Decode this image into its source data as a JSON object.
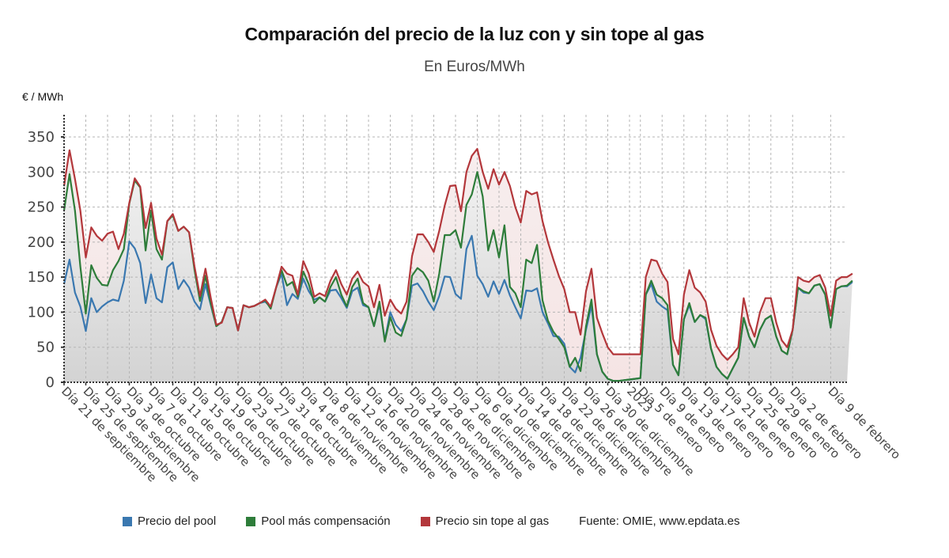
{
  "chart_data": {
    "type": "line",
    "title": "Comparación del precio de la luz con y sin tope al gas",
    "subtitle": "En Euros/MWh",
    "ylabel": "€ / MWh",
    "xlabel": "",
    "ylim": [
      0,
      380
    ],
    "yticks": [
      0,
      50,
      100,
      150,
      200,
      250,
      300,
      350
    ],
    "grid": true,
    "legend_position": "bottom",
    "source": "Fuente: OMIE, www.epdata.es",
    "xtick_labels": [
      "Día 21 de septiembre",
      "Día 25 de septiembre",
      "Día 29 de septiembre",
      "Día 3 de octubre",
      "Día 7 de octubre",
      "Día 11 de octubre",
      "Día 15 de octubre",
      "Día 19 de octubre",
      "Día 23 de octubre",
      "Día 27 de octubre",
      "Día 31 de octubre",
      "Día 4 de noviembre",
      "Día 8 de noviembre",
      "Día 12 de noviembre",
      "Día 16 de noviembre",
      "Día 20 de noviembre",
      "Día 24 de noviembre",
      "Día 28 de noviembre",
      "Día 2 de diciembre",
      "Día 6 de diciembre",
      "Día 10 de diciembre",
      "Día 14 de diciembre",
      "Día 18 de diciembre",
      "Día 22 de diciembre",
      "Día 26 de diciembre",
      "Día 30 de diciembre",
      "2023",
      "Día 5 de enero",
      "Día 9 de enero",
      "Día 13 de enero",
      "Día 17 de enero",
      "Día 21 de enero",
      "Día 25 de enero",
      "Día 29 de enero",
      "Día 2 de febrero",
      "Día 9 de febrero"
    ],
    "xtick_positions": [
      0,
      4,
      8,
      12,
      16,
      20,
      24,
      28,
      32,
      36,
      40,
      44,
      48,
      52,
      56,
      60,
      64,
      68,
      72,
      76,
      80,
      84,
      88,
      92,
      96,
      100,
      104,
      106,
      110,
      114,
      118,
      122,
      126,
      130,
      134,
      141
    ],
    "x_count": 145,
    "series": [
      {
        "name": "Precio del pool",
        "color": "#3a78b0",
        "values": [
          140,
          175,
          128,
          108,
          73,
          120,
          100,
          108,
          114,
          118,
          116,
          145,
          201,
          191,
          170,
          113,
          154,
          120,
          114,
          164,
          171,
          133,
          146,
          135,
          115,
          104,
          140,
          110,
          80,
          86,
          107,
          106,
          74,
          110,
          107,
          109,
          113,
          115,
          107,
          135,
          155,
          110,
          126,
          119,
          148,
          130,
          118,
          121,
          115,
          131,
          132,
          120,
          106,
          130,
          135,
          110,
          107,
          80,
          111,
          60,
          100,
          82,
          73,
          90,
          138,
          141,
          130,
          115,
          103,
          123,
          151,
          150,
          126,
          119,
          190,
          209,
          152,
          140,
          122,
          144,
          126,
          146,
          124,
          107,
          91,
          131,
          130,
          134,
          100,
          84,
          66,
          65,
          55,
          22,
          14,
          35,
          75,
          110,
          40,
          15,
          5,
          2,
          2,
          3,
          4,
          5,
          6,
          125,
          140,
          115,
          108,
          103,
          25,
          10,
          90,
          110,
          86,
          96,
          90,
          48,
          22,
          12,
          5,
          20,
          35,
          92,
          65,
          50,
          75,
          90,
          95,
          65,
          45,
          40,
          75,
          135,
          128,
          127,
          138,
          140,
          125,
          78,
          133,
          137,
          137,
          143
        ]
      },
      {
        "name": "Pool más compensación",
        "color": "#2e7d3a",
        "values": [
          245,
          297,
          245,
          165,
          98,
          167,
          149,
          139,
          138,
          160,
          173,
          190,
          255,
          288,
          278,
          188,
          245,
          190,
          175,
          230,
          238,
          216,
          222,
          214,
          160,
          116,
          152,
          112,
          80,
          86,
          107,
          106,
          74,
          110,
          107,
          109,
          113,
          117,
          105,
          135,
          160,
          138,
          143,
          122,
          158,
          140,
          113,
          121,
          115,
          136,
          150,
          125,
          108,
          136,
          148,
          113,
          107,
          80,
          115,
          58,
          93,
          71,
          66,
          90,
          152,
          163,
          157,
          145,
          115,
          155,
          210,
          210,
          217,
          192,
          253,
          268,
          300,
          265,
          188,
          217,
          178,
          224,
          136,
          127,
          107,
          175,
          170,
          196,
          117,
          88,
          72,
          62,
          50,
          22,
          35,
          16,
          80,
          118,
          40,
          15,
          5,
          2,
          2,
          3,
          4,
          5,
          6,
          125,
          145,
          125,
          120,
          110,
          25,
          10,
          90,
          113,
          86,
          96,
          92,
          48,
          22,
          12,
          5,
          20,
          35,
          92,
          65,
          50,
          75,
          90,
          95,
          65,
          45,
          40,
          75,
          135,
          130,
          127,
          138,
          140,
          125,
          78,
          133,
          137,
          138,
          145
        ]
      },
      {
        "name": "Precio sin tope al gas",
        "color": "#b3373b",
        "values": [
          280,
          331,
          290,
          245,
          178,
          221,
          209,
          202,
          212,
          215,
          190,
          212,
          256,
          291,
          279,
          220,
          256,
          205,
          182,
          230,
          240,
          216,
          222,
          214,
          165,
          123,
          162,
          120,
          82,
          85,
          107,
          106,
          74,
          110,
          107,
          109,
          113,
          118,
          108,
          135,
          165,
          155,
          152,
          125,
          173,
          155,
          122,
          127,
          123,
          145,
          160,
          140,
          125,
          148,
          158,
          143,
          137,
          107,
          139,
          95,
          118,
          105,
          98,
          115,
          180,
          211,
          211,
          200,
          186,
          216,
          252,
          280,
          281,
          244,
          300,
          323,
          333,
          300,
          276,
          304,
          282,
          300,
          280,
          250,
          228,
          273,
          268,
          271,
          230,
          200,
          175,
          152,
          133,
          100,
          100,
          68,
          130,
          162,
          92,
          70,
          50,
          40,
          40,
          40,
          40,
          40,
          40,
          150,
          175,
          173,
          155,
          143,
          62,
          40,
          125,
          160,
          135,
          128,
          115,
          75,
          52,
          40,
          32,
          40,
          50,
          120,
          85,
          65,
          100,
          120,
          120,
          85,
          60,
          50,
          75,
          150,
          145,
          143,
          150,
          153,
          135,
          95,
          145,
          150,
          150,
          155
        ]
      }
    ]
  },
  "legend": {
    "items": [
      {
        "label": "Precio del pool",
        "color": "#3a78b0"
      },
      {
        "label": "Pool más compensación",
        "color": "#2e7d3a"
      },
      {
        "label": "Precio sin tope al gas",
        "color": "#b3373b"
      }
    ],
    "source": "Fuente: OMIE, www.epdata.es"
  }
}
